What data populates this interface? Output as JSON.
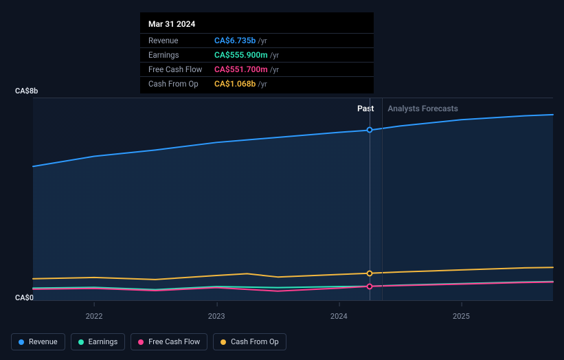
{
  "chart": {
    "background_color": "#0d1421",
    "past_shade_color": "rgba(20,34,56,0.45)",
    "grid_color": "#2a3446",
    "hover_line_color": "#4a5670",
    "font_family": "system-ui",
    "y_axis": {
      "top_label": "CA$8b",
      "bottom_label": "CA$0",
      "min": 0,
      "max": 8000,
      "label_color": "#e1e6ef",
      "label_fontsize": 11
    },
    "x_axis": {
      "domain_start": 2021.5,
      "domain_end": 2025.75,
      "ticks": [
        2022,
        2023,
        2024,
        2025
      ],
      "tick_labels": [
        "2022",
        "2023",
        "2024",
        "2025"
      ],
      "tick_color": "#8b95a8",
      "tick_fontsize": 11,
      "past_cutoff": 2024.35,
      "hover_x": 2024.25
    },
    "sections": {
      "past_label": "Past",
      "forecast_label": "Analysts Forecasts",
      "past_label_color": "#ffffff",
      "forecast_label_color": "#6b7689",
      "label_fontsize": 12
    },
    "series": [
      {
        "id": "revenue",
        "label": "Revenue",
        "color": "#2e9bff",
        "line_width": 2,
        "has_marker": true,
        "has_area": true,
        "area_opacity": 0.12,
        "points": [
          [
            2021.5,
            5300
          ],
          [
            2022.0,
            5700
          ],
          [
            2022.5,
            5950
          ],
          [
            2023.0,
            6250
          ],
          [
            2023.25,
            6350
          ],
          [
            2024.0,
            6650
          ],
          [
            2024.25,
            6735
          ],
          [
            2024.5,
            6900
          ],
          [
            2025.0,
            7150
          ],
          [
            2025.5,
            7300
          ],
          [
            2025.75,
            7350
          ]
        ]
      },
      {
        "id": "cash_from_op",
        "label": "Cash From Op",
        "color": "#f5b93f",
        "line_width": 2,
        "has_marker": true,
        "has_area": false,
        "points": [
          [
            2021.5,
            850
          ],
          [
            2022.0,
            900
          ],
          [
            2022.5,
            820
          ],
          [
            2023.0,
            980
          ],
          [
            2023.25,
            1050
          ],
          [
            2023.5,
            920
          ],
          [
            2024.0,
            1020
          ],
          [
            2024.25,
            1068
          ],
          [
            2024.5,
            1120
          ],
          [
            2025.0,
            1200
          ],
          [
            2025.5,
            1280
          ],
          [
            2025.75,
            1300
          ]
        ]
      },
      {
        "id": "earnings",
        "label": "Earnings",
        "color": "#2ee6b9",
        "line_width": 2,
        "has_marker": false,
        "has_area": false,
        "points": [
          [
            2021.5,
            480
          ],
          [
            2022.0,
            510
          ],
          [
            2022.5,
            420
          ],
          [
            2023.0,
            540
          ],
          [
            2023.5,
            500
          ],
          [
            2024.0,
            540
          ],
          [
            2024.25,
            556
          ],
          [
            2024.5,
            600
          ],
          [
            2025.0,
            660
          ],
          [
            2025.5,
            720
          ],
          [
            2025.75,
            740
          ]
        ]
      },
      {
        "id": "free_cash_flow",
        "label": "Free Cash Flow",
        "color": "#ff3f8f",
        "line_width": 2,
        "has_marker": true,
        "has_area": false,
        "points": [
          [
            2021.5,
            440
          ],
          [
            2022.0,
            470
          ],
          [
            2022.5,
            380
          ],
          [
            2023.0,
            500
          ],
          [
            2023.5,
            360
          ],
          [
            2024.0,
            480
          ],
          [
            2024.25,
            552
          ],
          [
            2024.5,
            580
          ],
          [
            2025.0,
            640
          ],
          [
            2025.5,
            700
          ],
          [
            2025.75,
            720
          ]
        ]
      }
    ]
  },
  "tooltip": {
    "date": "Mar 31 2024",
    "unit_suffix": "/yr",
    "rows": [
      {
        "label": "Revenue",
        "value": "CA$6.735b",
        "color": "#2e9bff"
      },
      {
        "label": "Earnings",
        "value": "CA$555.900m",
        "color": "#2ee6b9"
      },
      {
        "label": "Free Cash Flow",
        "value": "CA$551.700m",
        "color": "#ff3f8f"
      },
      {
        "label": "Cash From Op",
        "value": "CA$1.068b",
        "color": "#f5b93f"
      }
    ]
  },
  "legend": {
    "order": [
      "revenue",
      "earnings",
      "free_cash_flow",
      "cash_from_op"
    ],
    "border_color": "#2e3a50",
    "text_color": "#d5dce8",
    "fontsize": 11
  }
}
